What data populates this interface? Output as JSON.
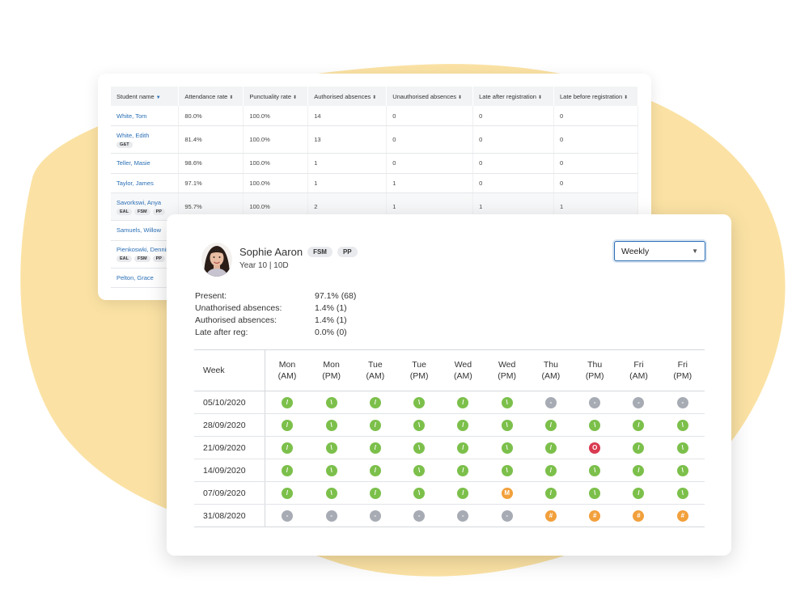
{
  "colors": {
    "blob": "#fbe2a4",
    "present": "#7cc04b",
    "no_session": "#a7abb3",
    "unauthorised": "#d93a50",
    "late": "#f2a03c",
    "link": "#2a6fb5"
  },
  "back_table": {
    "columns": [
      "Student name",
      "Attendance rate",
      "Punctuality rate",
      "Authorised absences",
      "Unauthorised absences",
      "Late after registration",
      "Late before registration"
    ],
    "rows": [
      {
        "name": "White, Tom",
        "tags": [],
        "values": [
          "80.0%",
          "100.0%",
          "14",
          "0",
          "0",
          "0"
        ]
      },
      {
        "name": "White, Edith",
        "tags": [
          "G&T"
        ],
        "values": [
          "81.4%",
          "100.0%",
          "13",
          "0",
          "0",
          "0"
        ]
      },
      {
        "name": "Teller, Masie",
        "tags": [],
        "values": [
          "98.6%",
          "100.0%",
          "1",
          "0",
          "0",
          "0"
        ]
      },
      {
        "name": "Taylor, James",
        "tags": [],
        "values": [
          "97.1%",
          "100.0%",
          "1",
          "1",
          "0",
          "0"
        ]
      },
      {
        "name": "Savorkswi, Anya",
        "tags": [
          "EAL",
          "FSM",
          "PP"
        ],
        "values": [
          "95.7%",
          "100.0%",
          "2",
          "1",
          "1",
          "1"
        ]
      },
      {
        "name": "Samuels, Willow",
        "tags": [],
        "values": [
          "",
          "",
          "",
          "",
          "",
          ""
        ]
      },
      {
        "name": "Pienkoswki, Dennis",
        "tags": [
          "EAL",
          "FSM",
          "PP"
        ],
        "values": [
          "",
          "",
          "",
          "",
          "",
          ""
        ]
      },
      {
        "name": "Pelton, Grace",
        "tags": [],
        "values": [
          "",
          "",
          "",
          "",
          "",
          ""
        ]
      }
    ]
  },
  "student": {
    "name": "Sophie Aaron",
    "badges": [
      "FSM",
      "PP"
    ],
    "class": "Year 10 | 10D"
  },
  "period_select": {
    "value": "Weekly"
  },
  "stats": [
    {
      "label": "Present:",
      "value": "97.1% (68)"
    },
    {
      "label": "Unathorised absences:",
      "value": "1.4% (1)"
    },
    {
      "label": "Authorised absences:",
      "value": "1.4% (1)"
    },
    {
      "label": "Late after reg:",
      "value": "0.0% (0)"
    }
  ],
  "attendance": {
    "week_header": "Week",
    "sessions": [
      [
        "Mon",
        "(AM)"
      ],
      [
        "Mon",
        "(PM)"
      ],
      [
        "Tue",
        "(AM)"
      ],
      [
        "Tue",
        "(PM)"
      ],
      [
        "Wed",
        "(AM)"
      ],
      [
        "Wed",
        "(PM)"
      ],
      [
        "Thu",
        "(AM)"
      ],
      [
        "Thu",
        "(PM)"
      ],
      [
        "Fri",
        "(AM)"
      ],
      [
        "Fri",
        "(PM)"
      ]
    ],
    "rows": [
      {
        "week": "05/10/2020",
        "marks": [
          "/",
          "\\",
          "/",
          "\\",
          "/",
          "\\",
          "-",
          "-",
          "-",
          "-"
        ]
      },
      {
        "week": "28/09/2020",
        "marks": [
          "/",
          "\\",
          "/",
          "\\",
          "/",
          "\\",
          "/",
          "\\",
          "/",
          "\\"
        ]
      },
      {
        "week": "21/09/2020",
        "marks": [
          "/",
          "\\",
          "/",
          "\\",
          "/",
          "\\",
          "/",
          "O",
          "/",
          "\\"
        ]
      },
      {
        "week": "14/09/2020",
        "marks": [
          "/",
          "\\",
          "/",
          "\\",
          "/",
          "\\",
          "/",
          "\\",
          "/",
          "\\"
        ]
      },
      {
        "week": "07/09/2020",
        "marks": [
          "/",
          "\\",
          "/",
          "\\",
          "/",
          "M",
          "/",
          "\\",
          "/",
          "\\"
        ]
      },
      {
        "week": "31/08/2020",
        "marks": [
          "-",
          "-",
          "-",
          "-",
          "-",
          "-",
          "#",
          "#",
          "#",
          "#"
        ]
      }
    ]
  }
}
